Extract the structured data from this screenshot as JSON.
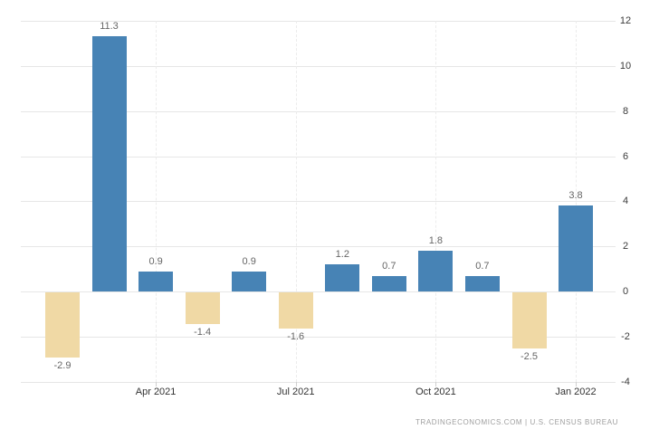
{
  "chart_data": {
    "type": "bar",
    "title": "",
    "xlabel": "",
    "ylabel": "",
    "values": [
      -2.9,
      11.3,
      0.9,
      -1.4,
      0.9,
      -1.6,
      1.2,
      0.7,
      1.8,
      0.7,
      -2.5,
      3.8
    ],
    "bar_labels": [
      "-2.9",
      "11.3",
      "0.9",
      "-1.4",
      "0.9",
      "-1.6",
      "1.2",
      "0.7",
      "1.8",
      "0.7",
      "-2.5",
      "3.8"
    ],
    "x_tick_labels": [
      "Apr 2021",
      "Jul 2021",
      "Oct 2021",
      "Jan 2022"
    ],
    "x_tick_bar_indices": [
      2,
      5,
      8,
      11
    ],
    "y_ticks": [
      -4,
      -2,
      0,
      2,
      4,
      6,
      8,
      10,
      12
    ],
    "y_tick_labels": [
      "-4",
      "-2",
      "0",
      "2",
      "4",
      "6",
      "8",
      "10",
      "12"
    ],
    "ylim": [
      -4,
      12
    ],
    "grid": true,
    "legend": "none",
    "y_axis_side": "right",
    "colors": {
      "positive_bar": "#4783b5",
      "negative_bar": "#f0d9a5",
      "gridline": "#e6e6e6",
      "bar_label": "#666666",
      "axis_label": "#333333",
      "attribution": "#9e9e9e",
      "background": "#ffffff"
    },
    "attribution": "TRADINGECONOMICS.COM  |  U.S. CENSUS BUREAU"
  }
}
